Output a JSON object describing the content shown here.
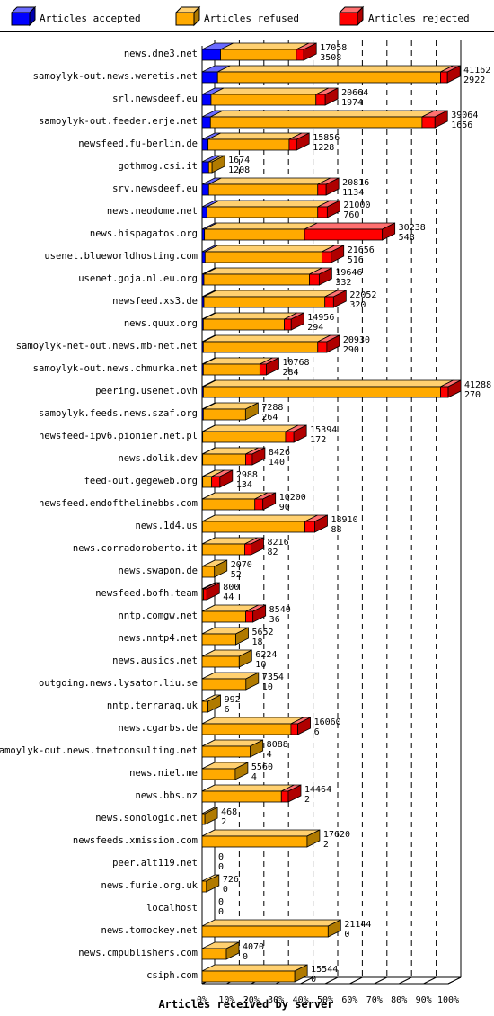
{
  "chart_data": {
    "type": "bar",
    "orientation": "horizontal",
    "stacked": true,
    "xlabel": "Articles received by server",
    "x_tick_labels": [
      "0%",
      "10%",
      "20%",
      "30%",
      "40%",
      "50%",
      "60%",
      "70%",
      "80%",
      "90%",
      "100%"
    ],
    "xlim": [
      0,
      41288
    ],
    "grid": true,
    "legend_position": "top",
    "series": [
      {
        "name": "Articles accepted",
        "color": "#0000ff"
      },
      {
        "name": "Articles refused",
        "color": "#ffaa00"
      },
      {
        "name": "Articles rejected",
        "color": "#ff0000"
      }
    ],
    "rows": [
      {
        "server": "news.dne3.net",
        "accepted": 3100,
        "refused": 12700,
        "rejected": 1258,
        "label_total": "17058",
        "label_second": "3508"
      },
      {
        "server": "samoylyk-out.news.weretis.net",
        "accepted": 2600,
        "refused": 37400,
        "rejected": 1162,
        "label_total": "41162",
        "label_second": "2922"
      },
      {
        "server": "srl.newsdeef.eu",
        "accepted": 1500,
        "refused": 17600,
        "rejected": 1564,
        "label_total": "20664",
        "label_second": "1974"
      },
      {
        "server": "samoylyk-out.feeder.erje.net",
        "accepted": 1400,
        "refused": 35500,
        "rejected": 2164,
        "label_total": "39064",
        "label_second": "1656"
      },
      {
        "server": "newsfeed.fu-berlin.de",
        "accepted": 1000,
        "refused": 13600,
        "rejected": 1256,
        "label_total": "15856",
        "label_second": "1228"
      },
      {
        "server": "gothmog.csi.it",
        "accepted": 1100,
        "refused": 574,
        "rejected": 0,
        "label_total": "1674",
        "label_second": "1208"
      },
      {
        "server": "srv.newsdeef.eu",
        "accepted": 1100,
        "refused": 18300,
        "rejected": 1416,
        "label_total": "20816",
        "label_second": "1134"
      },
      {
        "server": "news.neodome.net",
        "accepted": 800,
        "refused": 18600,
        "rejected": 1600,
        "label_total": "21000",
        "label_second": "760"
      },
      {
        "server": "news.hispagatos.org",
        "accepted": 400,
        "refused": 16800,
        "rejected": 13038,
        "label_total": "30238",
        "label_second": "548"
      },
      {
        "server": "usenet.blueworldhosting.com",
        "accepted": 500,
        "refused": 19600,
        "rejected": 1556,
        "label_total": "21656",
        "label_second": "516"
      },
      {
        "server": "usenet.goja.nl.eu.org",
        "accepted": 300,
        "refused": 17700,
        "rejected": 1646,
        "label_total": "19646",
        "label_second": "332"
      },
      {
        "server": "newsfeed.xs3.de",
        "accepted": 300,
        "refused": 20300,
        "rejected": 1452,
        "label_total": "22052",
        "label_second": "320"
      },
      {
        "server": "news.quux.org",
        "accepted": 200,
        "refused": 13600,
        "rejected": 1156,
        "label_total": "14956",
        "label_second": "294"
      },
      {
        "server": "samoylyk-net-out.news.mb-net.net",
        "accepted": 200,
        "refused": 19200,
        "rejected": 1530,
        "label_total": "20930",
        "label_second": "290"
      },
      {
        "server": "samoylyk-out.news.chmurka.net",
        "accepted": 200,
        "refused": 9500,
        "rejected": 1068,
        "label_total": "10768",
        "label_second": "284"
      },
      {
        "server": "peering.usenet.ovh",
        "accepted": 200,
        "refused": 39800,
        "rejected": 1288,
        "label_total": "41288",
        "label_second": "270"
      },
      {
        "server": "samoylyk.feeds.news.szaf.org",
        "accepted": 200,
        "refused": 7088,
        "rejected": 0,
        "label_total": "7288",
        "label_second": "264"
      },
      {
        "server": "newsfeed-ipv6.pionier.net.pl",
        "accepted": 100,
        "refused": 13900,
        "rejected": 1394,
        "label_total": "15394",
        "label_second": "172"
      },
      {
        "server": "news.dolik.dev",
        "accepted": 100,
        "refused": 7200,
        "rejected": 1126,
        "label_total": "8426",
        "label_second": "140"
      },
      {
        "server": "feed-out.gegeweb.org",
        "accepted": 100,
        "refused": 1500,
        "rejected": 1388,
        "label_total": "2988",
        "label_second": "134"
      },
      {
        "server": "newsfeed.endofthelinebbs.com",
        "accepted": 50,
        "refused": 8800,
        "rejected": 1350,
        "label_total": "10200",
        "label_second": "90"
      },
      {
        "server": "news.1d4.us",
        "accepted": 50,
        "refused": 17200,
        "rejected": 1660,
        "label_total": "18910",
        "label_second": "88"
      },
      {
        "server": "news.corradoroberto.it",
        "accepted": 50,
        "refused": 7100,
        "rejected": 1066,
        "label_total": "8216",
        "label_second": "82"
      },
      {
        "server": "news.swapon.de",
        "accepted": 30,
        "refused": 2040,
        "rejected": 0,
        "label_total": "2070",
        "label_second": "52"
      },
      {
        "server": "newsfeed.bofh.team",
        "accepted": 30,
        "refused": 200,
        "rejected": 570,
        "label_total": "800",
        "label_second": "44"
      },
      {
        "server": "nntp.comgw.net",
        "accepted": 20,
        "refused": 7300,
        "rejected": 1220,
        "label_total": "8540",
        "label_second": "36"
      },
      {
        "server": "news.nntp4.net",
        "accepted": 10,
        "refused": 5642,
        "rejected": 0,
        "label_total": "5652",
        "label_second": "18"
      },
      {
        "server": "news.ausics.net",
        "accepted": 5,
        "refused": 6219,
        "rejected": 0,
        "label_total": "6224",
        "label_second": "10"
      },
      {
        "server": "outgoing.news.lysator.liu.se",
        "accepted": 5,
        "refused": 7349,
        "rejected": 0,
        "label_total": "7354",
        "label_second": "10"
      },
      {
        "server": "nntp.terraraq.uk",
        "accepted": 3,
        "refused": 989,
        "rejected": 0,
        "label_total": "992",
        "label_second": "6"
      },
      {
        "server": "news.cgarbs.de",
        "accepted": 3,
        "refused": 14900,
        "rejected": 1157,
        "label_total": "16060",
        "label_second": "6"
      },
      {
        "server": "samoylyk-out.news.tnetconsulting.net",
        "accepted": 2,
        "refused": 8086,
        "rejected": 0,
        "label_total": "8088",
        "label_second": "4"
      },
      {
        "server": "news.niel.me",
        "accepted": 2,
        "refused": 5558,
        "rejected": 0,
        "label_total": "5560",
        "label_second": "4"
      },
      {
        "server": "news.bbs.nz",
        "accepted": 1,
        "refused": 13300,
        "rejected": 1163,
        "label_total": "14464",
        "label_second": "2"
      },
      {
        "server": "news.sonologic.net",
        "accepted": 1,
        "refused": 467,
        "rejected": 0,
        "label_total": "468",
        "label_second": "2"
      },
      {
        "server": "newsfeeds.xmission.com",
        "accepted": 1,
        "refused": 17619,
        "rejected": 0,
        "label_total": "17620",
        "label_second": "2"
      },
      {
        "server": "peer.alt119.net",
        "accepted": 0,
        "refused": 0,
        "rejected": 0,
        "label_total": "0",
        "label_second": "0"
      },
      {
        "server": "news.furie.org.uk",
        "accepted": 0,
        "refused": 726,
        "rejected": 0,
        "label_total": "726",
        "label_second": "0"
      },
      {
        "server": "localhost",
        "accepted": 0,
        "refused": 0,
        "rejected": 0,
        "label_total": "0",
        "label_second": "0"
      },
      {
        "server": "news.tomockey.net",
        "accepted": 0,
        "refused": 21144,
        "rejected": 0,
        "label_total": "21144",
        "label_second": "0"
      },
      {
        "server": "news.cmpublishers.com",
        "accepted": 0,
        "refused": 4070,
        "rejected": 0,
        "label_total": "4070",
        "label_second": "0"
      },
      {
        "server": "csiph.com",
        "accepted": 0,
        "refused": 15544,
        "rejected": 0,
        "label_total": "15544",
        "label_second": "0"
      }
    ]
  }
}
